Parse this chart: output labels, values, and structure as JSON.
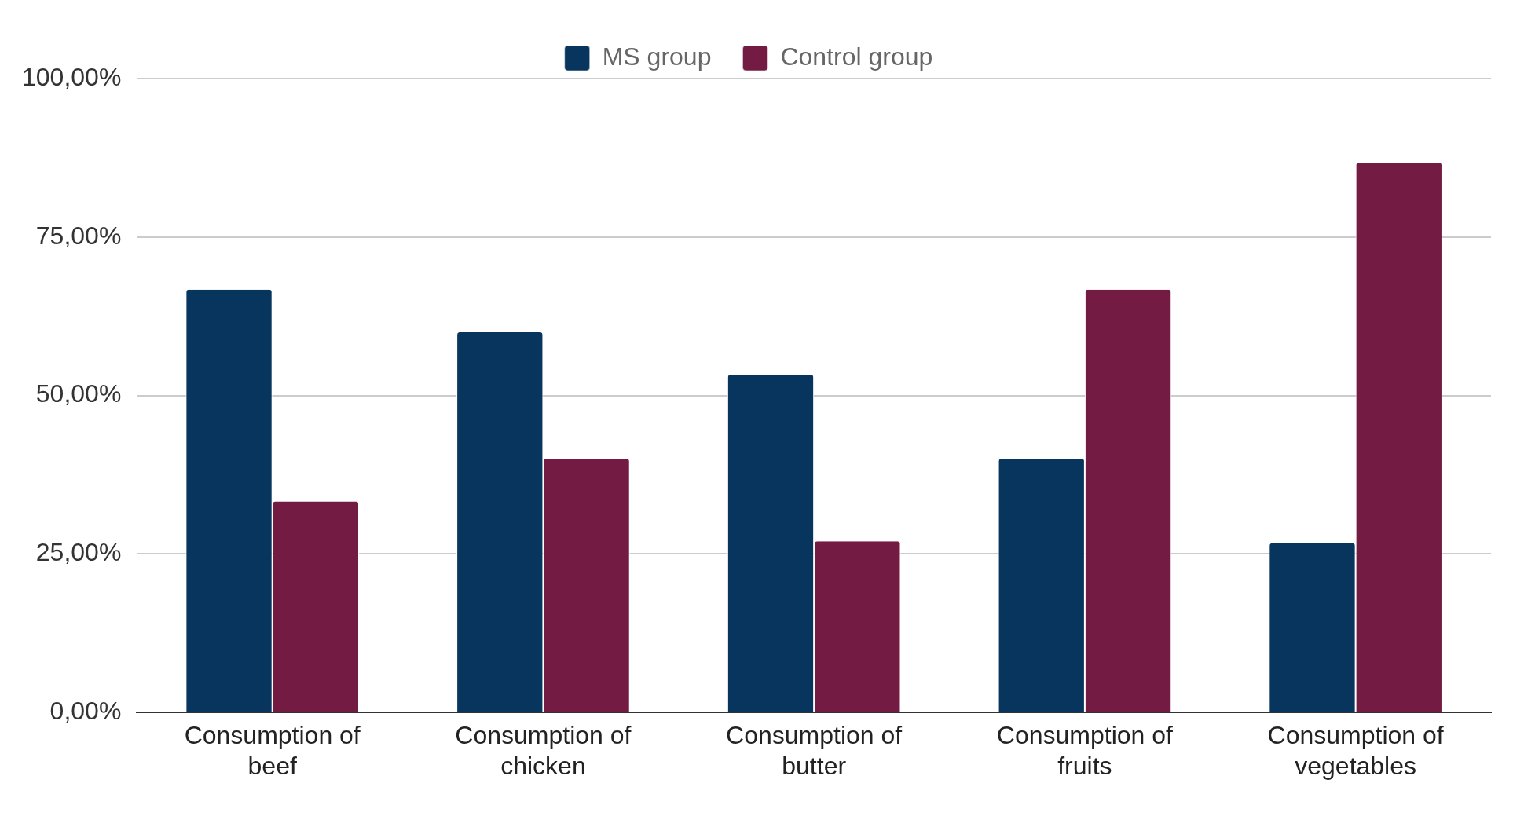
{
  "chart_data": {
    "type": "bar",
    "categories": [
      "Consumption of beef",
      "Consumption of chicken",
      "Consumption of butter",
      "Consumption of fruits",
      "Consumption of vegetables"
    ],
    "series": [
      {
        "name": "MS group",
        "color": "#08355e",
        "values": [
          66.7,
          60,
          53.3,
          40,
          26.7
        ]
      },
      {
        "name": "Control group",
        "color": "#741b44",
        "values": [
          33.3,
          40,
          27,
          66.7,
          86.7
        ]
      }
    ],
    "ylim": [
      0,
      100
    ],
    "yticks": [
      {
        "value": 0,
        "label": "0,00%"
      },
      {
        "value": 25,
        "label": "25,00%"
      },
      {
        "value": 50,
        "label": "50,00%"
      },
      {
        "value": 75,
        "label": "75,00%"
      },
      {
        "value": 100,
        "label": "100,00%"
      }
    ],
    "grid": "y",
    "legend": "top"
  }
}
